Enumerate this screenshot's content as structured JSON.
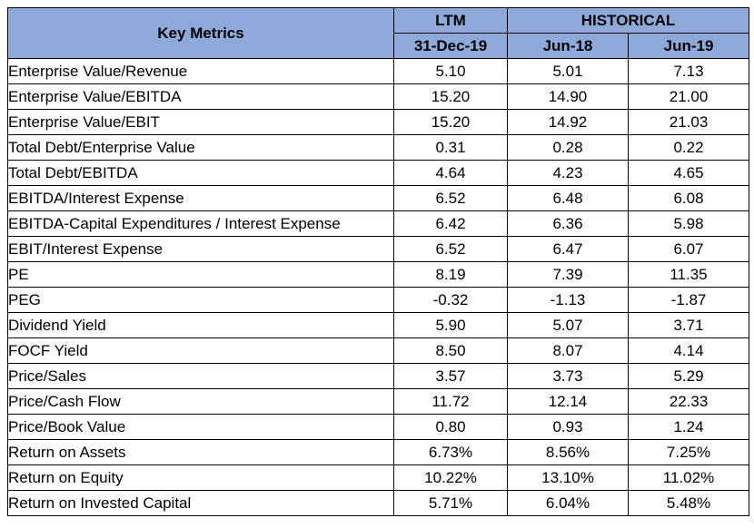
{
  "header": {
    "key_metrics": "Key Metrics",
    "ltm": "LTM",
    "historical": "HISTORICAL",
    "col_ltm_date": "31-Dec-19",
    "col_hist_1": "Jun-18",
    "col_hist_2": "Jun-19"
  },
  "rows": [
    {
      "metric": "Enterprise Value/Revenue",
      "ltm": "5.10",
      "h1": "5.01",
      "h2": "7.13"
    },
    {
      "metric": "Enterprise Value/EBITDA",
      "ltm": "15.20",
      "h1": "14.90",
      "h2": "21.00"
    },
    {
      "metric": "Enterprise Value/EBIT",
      "ltm": "15.20",
      "h1": "14.92",
      "h2": "21.03"
    },
    {
      "metric": "Total Debt/Enterprise Value",
      "ltm": "0.31",
      "h1": "0.28",
      "h2": "0.22"
    },
    {
      "metric": "Total Debt/EBITDA",
      "ltm": "4.64",
      "h1": "4.23",
      "h2": "4.65"
    },
    {
      "metric": "EBITDA/Interest Expense",
      "ltm": "6.52",
      "h1": "6.48",
      "h2": "6.08"
    },
    {
      "metric": "EBITDA-Capital Expenditures / Interest Expense",
      "ltm": "6.42",
      "h1": "6.36",
      "h2": "5.98"
    },
    {
      "metric": "EBIT/Interest Expense",
      "ltm": "6.52",
      "h1": "6.47",
      "h2": "6.07"
    },
    {
      "metric": "PE",
      "ltm": "8.19",
      "h1": "7.39",
      "h2": "11.35"
    },
    {
      "metric": "PEG",
      "ltm": "-0.32",
      "h1": "-1.13",
      "h2": "-1.87"
    },
    {
      "metric": "Dividend Yield",
      "ltm": "5.90",
      "h1": "5.07",
      "h2": "3.71"
    },
    {
      "metric": "FOCF Yield",
      "ltm": "8.50",
      "h1": "8.07",
      "h2": "4.14"
    },
    {
      "metric": "Price/Sales",
      "ltm": "3.57",
      "h1": "3.73",
      "h2": "5.29"
    },
    {
      "metric": "Price/Cash Flow",
      "ltm": "11.72",
      "h1": "12.14",
      "h2": "22.33"
    },
    {
      "metric": "Price/Book Value",
      "ltm": "0.80",
      "h1": "0.93",
      "h2": "1.24"
    },
    {
      "metric": "Return on Assets",
      "ltm": "6.73%",
      "h1": "8.56%",
      "h2": "7.25%"
    },
    {
      "metric": "Return on Equity",
      "ltm": "10.22%",
      "h1": "13.10%",
      "h2": "11.02%"
    },
    {
      "metric": "Return on Invested Capital",
      "ltm": "5.71%",
      "h1": "6.04%",
      "h2": "5.48%"
    }
  ],
  "colors": {
    "header_fill": "#8eaadb",
    "border": "#000000"
  }
}
